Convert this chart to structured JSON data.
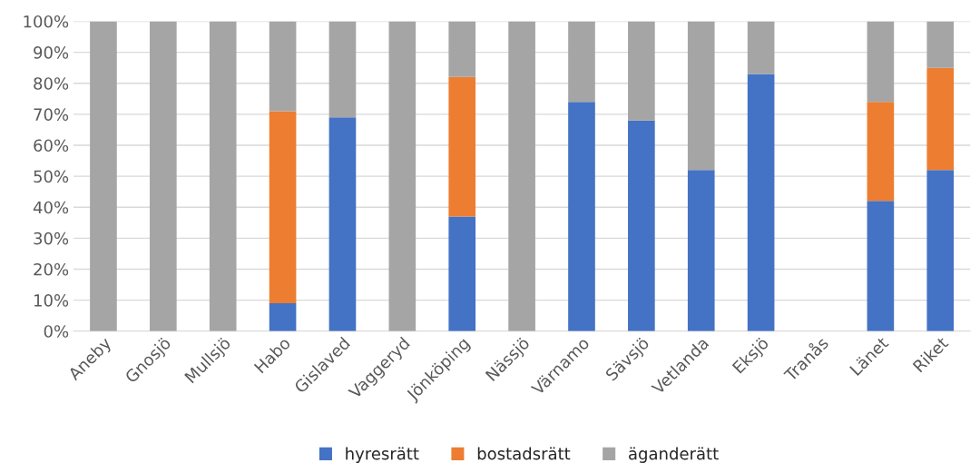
{
  "chart_data": {
    "type": "bar",
    "stacked": true,
    "categories": [
      "Aneby",
      "Gnosjö",
      "Mullsjö",
      "Habo",
      "Gislaved",
      "Vaggeryd",
      "Jönköping",
      "Nässjö",
      "Värnamo",
      "Sävsjö",
      "Vetlanda",
      "Eksjö",
      "Tranås",
      "Länet",
      "Riket"
    ],
    "series": [
      {
        "name": "hyresrätt",
        "color": "#4472c4",
        "values": [
          0,
          0,
          0,
          9,
          69,
          0,
          37,
          0,
          74,
          68,
          52,
          83,
          null,
          42,
          52
        ]
      },
      {
        "name": "bostadsrätt",
        "color": "#ed7d31",
        "values": [
          0,
          0,
          0,
          62,
          0,
          0,
          45,
          0,
          0,
          0,
          0,
          0,
          null,
          32,
          33
        ]
      },
      {
        "name": "äganderätt",
        "color": "#a5a5a5",
        "values": [
          100,
          100,
          100,
          29,
          31,
          100,
          18,
          100,
          26,
          32,
          48,
          17,
          null,
          26,
          15
        ]
      }
    ],
    "ylim": [
      0,
      100
    ],
    "yticks": [
      {
        "value": 0,
        "label": "0%"
      },
      {
        "value": 10,
        "label": "10%"
      },
      {
        "value": 20,
        "label": "20%"
      },
      {
        "value": 30,
        "label": "30%"
      },
      {
        "value": 40,
        "label": "40%"
      },
      {
        "value": 50,
        "label": "50%"
      },
      {
        "value": 60,
        "label": "60%"
      },
      {
        "value": 70,
        "label": "70%"
      },
      {
        "value": 80,
        "label": "80%"
      },
      {
        "value": 90,
        "label": "90%"
      },
      {
        "value": 100,
        "label": "100%"
      }
    ],
    "grid": "y",
    "legend": "bottom"
  }
}
